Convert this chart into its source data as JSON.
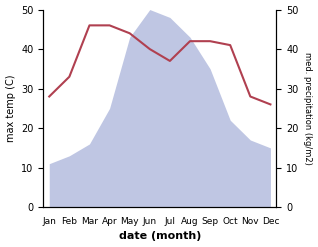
{
  "months": [
    "Jan",
    "Feb",
    "Mar",
    "Apr",
    "May",
    "Jun",
    "Jul",
    "Aug",
    "Sep",
    "Oct",
    "Nov",
    "Dec"
  ],
  "temperature": [
    28,
    33,
    46,
    46,
    44,
    40,
    37,
    42,
    42,
    41,
    28,
    26
  ],
  "precipitation": [
    11,
    13,
    16,
    25,
    43,
    50,
    48,
    43,
    35,
    22,
    17,
    15
  ],
  "temp_color": "#b04050",
  "precip_fill_color": "#b8c0e0",
  "xlabel": "date (month)",
  "ylabel_left": "max temp (C)",
  "ylabel_right": "med. precipitation (kg/m2)",
  "ylim": [
    0,
    50
  ],
  "yticks": [
    0,
    10,
    20,
    30,
    40,
    50
  ],
  "background_color": "#ffffff"
}
